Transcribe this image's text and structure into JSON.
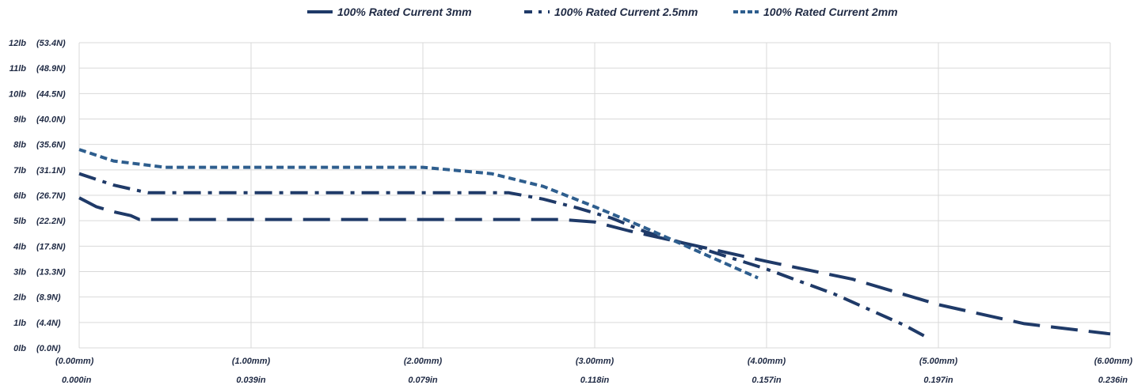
{
  "chart_data": {
    "type": "line",
    "title": "",
    "xlabel": "",
    "ylabel": "",
    "xlim": [
      0,
      6
    ],
    "ylim": [
      0,
      12
    ],
    "grid": true,
    "legend_position": "top",
    "y_ticks": [
      {
        "value": 12,
        "lb": "12lb",
        "n": "(53.4N)"
      },
      {
        "value": 11,
        "lb": "11lb",
        "n": "(48.9N)"
      },
      {
        "value": 10,
        "lb": "10lb",
        "n": "(44.5N)"
      },
      {
        "value": 9,
        "lb": "9lb",
        "n": "(40.0N)"
      },
      {
        "value": 8,
        "lb": "8lb",
        "n": "(35.6N)"
      },
      {
        "value": 7,
        "lb": "7lb",
        "n": "(31.1N)"
      },
      {
        "value": 6,
        "lb": "6lb",
        "n": "(26.7N)"
      },
      {
        "value": 5,
        "lb": "5lb",
        "n": "(22.2N)"
      },
      {
        "value": 4,
        "lb": "4lb",
        "n": "(17.8N)"
      },
      {
        "value": 3,
        "lb": "3lb",
        "n": "(13.3N)"
      },
      {
        "value": 2,
        "lb": "2lb",
        "n": "(8.9N)"
      },
      {
        "value": 1,
        "lb": "1lb",
        "n": "(4.4N)"
      },
      {
        "value": 0,
        "lb": "0lb",
        "n": "(0.0N)"
      }
    ],
    "x_ticks": [
      {
        "value": 0,
        "mm": "(0.00mm)",
        "in": "0.000in"
      },
      {
        "value": 1,
        "mm": "(1.00mm)",
        "in": "0.039in"
      },
      {
        "value": 2,
        "mm": "(2.00mm)",
        "in": "0.079in"
      },
      {
        "value": 3,
        "mm": "(3.00mm)",
        "in": "0.118in"
      },
      {
        "value": 4,
        "mm": "(4.00mm)",
        "in": "0.157in"
      },
      {
        "value": 5,
        "mm": "(5.00mm)",
        "in": "0.197in"
      },
      {
        "value": 6,
        "mm": "(6.00mm)",
        "in": "0.236in"
      }
    ],
    "series": [
      {
        "name": "100% Rated Current 3mm",
        "color": "#1f3a68",
        "dash": "long-dash",
        "points": [
          [
            0,
            5.9
          ],
          [
            0.1,
            5.55
          ],
          [
            0.2,
            5.35
          ],
          [
            0.3,
            5.2
          ],
          [
            0.35,
            5.05
          ],
          [
            1,
            5.05
          ],
          [
            2,
            5.05
          ],
          [
            2.8,
            5.05
          ],
          [
            3.0,
            4.95
          ],
          [
            3.2,
            4.6
          ],
          [
            3.5,
            4.15
          ],
          [
            4.0,
            3.4
          ],
          [
            4.5,
            2.7
          ],
          [
            5.0,
            1.7
          ],
          [
            5.5,
            0.95
          ],
          [
            6.0,
            0.55
          ]
        ]
      },
      {
        "name": "100% Rated Current 2.5mm",
        "color": "#1f3a68",
        "dash": "dash-dot",
        "points": [
          [
            0,
            6.85
          ],
          [
            0.2,
            6.4
          ],
          [
            0.4,
            6.1
          ],
          [
            1,
            6.1
          ],
          [
            2,
            6.1
          ],
          [
            2.5,
            6.1
          ],
          [
            2.7,
            5.85
          ],
          [
            2.9,
            5.5
          ],
          [
            3.1,
            5.1
          ],
          [
            3.3,
            4.55
          ],
          [
            3.6,
            3.95
          ],
          [
            4.0,
            3.1
          ],
          [
            4.4,
            2.1
          ],
          [
            4.8,
            0.9
          ],
          [
            4.95,
            0.35
          ]
        ]
      },
      {
        "name": "100% Rated Current 2mm",
        "color": "#2e5e8e",
        "dash": "short-dash",
        "points": [
          [
            0,
            7.8
          ],
          [
            0.2,
            7.35
          ],
          [
            0.5,
            7.1
          ],
          [
            1,
            7.1
          ],
          [
            1.5,
            7.1
          ],
          [
            2.0,
            7.1
          ],
          [
            2.4,
            6.85
          ],
          [
            2.7,
            6.35
          ],
          [
            3.0,
            5.55
          ],
          [
            3.3,
            4.7
          ],
          [
            3.6,
            3.8
          ],
          [
            3.95,
            2.75
          ]
        ]
      }
    ]
  }
}
